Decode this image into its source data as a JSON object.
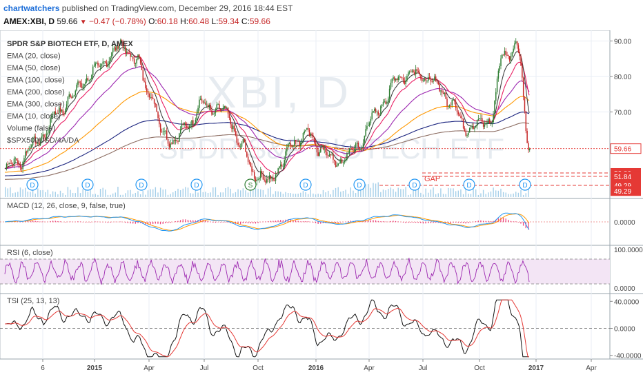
{
  "header": {
    "publisher": "chartwatchers",
    "published_text": "published on TradingView.com, December 29, 2016 18:44 EST",
    "symbol": "AMEX:XBI, D",
    "last": "59.66",
    "change": "−0.47 (−0.78%)",
    "open_label": "O:",
    "open": "60.18",
    "high_label": "H:",
    "high": "60.48",
    "low_label": "L:",
    "low": "59.34",
    "close_label": "C:",
    "close": "59.66"
  },
  "main_pane": {
    "legend": [
      "SPDR S&P BIOTECH ETF, D, AMEX",
      "EMA (20, close)",
      "EMA (50, close)",
      "EMA (100, close)",
      "EMA (200, close)",
      "EMA (300, close)",
      "EMA (10, close)",
      "Volume (false)",
      "$SPX500USD/4A/DA"
    ],
    "watermark_symbol": "XBI, D",
    "watermark_name": "SPDR S&P BIOTECH ETF",
    "gap_label": "GAP",
    "price_labels": [
      {
        "text": "59.66",
        "price": 59.66,
        "color": "#e53935",
        "style": "outline"
      },
      {
        "text": "52.80",
        "price": 52.8,
        "color": "#e53935",
        "style": "solid"
      },
      {
        "text": "51.84",
        "price": 51.84,
        "color": "#e53935",
        "style": "solid"
      },
      {
        "text": "49.29",
        "price": 49.29,
        "color": "#e53935",
        "style": "solid"
      },
      {
        "text": "49.29",
        "price": 47.7,
        "color": "#e53935",
        "style": "solid"
      }
    ],
    "dividend_marker": "D",
    "split_marker": "S"
  },
  "macd_pane": {
    "legend": "MACD (12, 26, close, 9, false, true)"
  },
  "rsi_pane": {
    "legend": "RSI (6, close)"
  },
  "tsi_pane": {
    "legend": "TSI (25, 13, 13)"
  },
  "time_axis": [
    "6",
    "2015",
    "Apr",
    "Jul",
    "Oct",
    "2016",
    "Apr",
    "Jul",
    "Oct",
    "2017",
    "Apr"
  ],
  "colors": {
    "up_candle": "#2e7d32",
    "down_candle": "#c62828",
    "ema20": "#e91e63",
    "ema50": "#ff9800",
    "ema100": "#9c27b0",
    "ema200": "#1a237e",
    "ema300": "#8d6e63",
    "ema10": "#424242",
    "volume": "#8fc3e3",
    "macd": "#2196f3",
    "signal": "#ff9800",
    "rsi": "#9c27b0",
    "tsi": "#111111",
    "tsi_signal": "#e53935",
    "grid": "#e8eef4",
    "axis_text": "#444444"
  },
  "chart_data": [
    {
      "type": "line",
      "title": "SPDR S&P BIOTECH ETF, D, AMEX",
      "ylim": [
        46,
        93
      ],
      "y_ticks": [
        90,
        80,
        70
      ],
      "x_ticks": [
        "6",
        "2015",
        "Apr",
        "Jul",
        "Oct",
        "2016",
        "Apr",
        "Jul",
        "Oct",
        "2017",
        "Apr"
      ],
      "series": [
        {
          "name": "SPDR S&P BIOTECH ETF",
          "values_approx": [
            54,
            56,
            60,
            64,
            70,
            74,
            79,
            82,
            86,
            89,
            84,
            76,
            64,
            62,
            67,
            72,
            71,
            69,
            60,
            53,
            50,
            55,
            62,
            64,
            60,
            56,
            57,
            61,
            68,
            74,
            80,
            81,
            80,
            77,
            73,
            66,
            66,
            68,
            86,
            89,
            59.66
          ]
        }
      ],
      "horizontal_levels": [
        59.66,
        52.8,
        51.84,
        49.29
      ]
    },
    {
      "type": "line",
      "title": "MACD (12, 26, close, 9, false, true)",
      "y_ticks": [
        0.0
      ]
    },
    {
      "type": "line",
      "title": "RSI (6, close)",
      "y_ticks": [
        100,
        0.0
      ]
    },
    {
      "type": "line",
      "title": "TSI (25, 13, 13)",
      "y_ticks": [
        40,
        0,
        -40
      ]
    }
  ]
}
